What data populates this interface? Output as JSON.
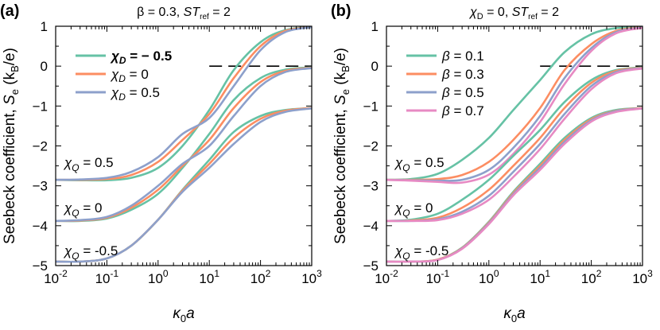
{
  "figure": {
    "panels": [
      "a",
      "b"
    ]
  },
  "chart_data": [
    {
      "type": "line",
      "panel_label": "(a)",
      "title": "β = 0.3, ST_ref = 2",
      "title_parts": {
        "main": "β = 0.3, ",
        "st": "ST",
        "sub": "ref",
        "tail": " = 2"
      },
      "xlabel": "κ0a",
      "xlabel_parts": {
        "sym": "κ",
        "sub": "0",
        "tail": "a"
      },
      "ylabel": "Seebeck coefficient, Se (kB/e)",
      "ylabel_parts": {
        "pre": "Seebeck coefficient, ",
        "S": "S",
        "e": "e",
        "open": " (k",
        "B": "B",
        "close": "/e)"
      },
      "x_scale": "log",
      "xlim": [
        0.01,
        1000
      ],
      "ylim": [
        -5,
        1
      ],
      "x_ticks": [
        {
          "base": "10",
          "exp": "-2",
          "value": 0.01
        },
        {
          "base": "10",
          "exp": "-1",
          "value": 0.1
        },
        {
          "base": "10",
          "exp": "0",
          "value": 1
        },
        {
          "base": "10",
          "exp": "1",
          "value": 10
        },
        {
          "base": "10",
          "exp": "2",
          "value": 100
        },
        {
          "base": "10",
          "exp": "3",
          "value": 1000
        }
      ],
      "y_ticks": [
        {
          "label": "1",
          "value": 1
        },
        {
          "label": "0",
          "value": 0
        },
        {
          "label": "−1",
          "value": -1
        },
        {
          "label": "−2",
          "value": -2
        },
        {
          "label": "−3",
          "value": -3
        },
        {
          "label": "−4",
          "value": -4
        },
        {
          "label": "−5",
          "value": -5
        }
      ],
      "reference_line": {
        "y": 0,
        "x_from": 10,
        "x_to": 1000,
        "style": "dashed"
      },
      "legend": {
        "placement": "upper-left",
        "entries": [
          {
            "sym": "χ",
            "sub": "D",
            "tail": " = − 0.5",
            "bold": true,
            "color": "#66c2a5"
          },
          {
            "sym": "χ",
            "sub": "D",
            "tail": " = 0",
            "bold": false,
            "color": "#fc8d62"
          },
          {
            "sym": "χ",
            "sub": "D",
            "tail": " = 0.5",
            "bold": false,
            "color": "#8da0cb"
          }
        ]
      },
      "group_labels": [
        {
          "sym": "χ",
          "sub": "Q",
          "tail": " = 0.5",
          "value": 0.5
        },
        {
          "sym": "χ",
          "sub": "Q",
          "tail": " = 0",
          "value": 0
        },
        {
          "sym": "χ",
          "sub": "Q",
          "tail": " = -0.5",
          "value": -0.5
        }
      ],
      "x": [
        0.01,
        0.03,
        0.1,
        0.3,
        1,
        3,
        10,
        30,
        100,
        300,
        1000
      ],
      "series": [
        {
          "name": "χD = −0.5, χQ = 0.5",
          "color": "#66c2a5",
          "values": [
            -2.85,
            -2.86,
            -2.86,
            -2.8,
            -2.55,
            -2.0,
            -1.1,
            -0.1,
            0.6,
            0.9,
            0.98
          ]
        },
        {
          "name": "χD = 0, χQ = 0.5",
          "color": "#fc8d62",
          "values": [
            -2.85,
            -2.85,
            -2.83,
            -2.73,
            -2.4,
            -1.85,
            -1.2,
            -0.3,
            0.5,
            0.88,
            0.98
          ]
        },
        {
          "name": "χD = 0.5, χQ = 0.5",
          "color": "#8da0cb",
          "values": [
            -2.85,
            -2.84,
            -2.8,
            -2.65,
            -2.28,
            -1.7,
            -1.3,
            -0.5,
            0.4,
            0.85,
            0.98
          ]
        },
        {
          "name": "χD = −0.5, χQ = 0",
          "color": "#66c2a5",
          "values": [
            -3.88,
            -3.88,
            -3.82,
            -3.6,
            -3.2,
            -2.55,
            -1.7,
            -0.85,
            -0.3,
            -0.09,
            -0.03
          ]
        },
        {
          "name": "χD = 0, χQ = 0",
          "color": "#fc8d62",
          "values": [
            -3.88,
            -3.87,
            -3.8,
            -3.55,
            -3.1,
            -2.5,
            -1.85,
            -1.05,
            -0.4,
            -0.12,
            -0.04
          ]
        },
        {
          "name": "χD = 0.5, χQ = 0",
          "color": "#8da0cb",
          "values": [
            -3.88,
            -3.86,
            -3.78,
            -3.5,
            -3.0,
            -2.45,
            -2.0,
            -1.25,
            -0.5,
            -0.15,
            -0.05
          ]
        },
        {
          "name": "χD = −0.5, χQ = −0.5",
          "color": "#66c2a5",
          "values": [
            -4.9,
            -4.9,
            -4.82,
            -4.5,
            -3.85,
            -3.1,
            -2.35,
            -1.65,
            -1.25,
            -1.1,
            -1.05
          ]
        },
        {
          "name": "χD = 0, χQ = −0.5",
          "color": "#fc8d62",
          "values": [
            -4.9,
            -4.9,
            -4.82,
            -4.5,
            -3.85,
            -3.12,
            -2.45,
            -1.8,
            -1.32,
            -1.12,
            -1.05
          ]
        },
        {
          "name": "χD = 0.5, χQ = −0.5",
          "color": "#8da0cb",
          "values": [
            -4.9,
            -4.9,
            -4.82,
            -4.5,
            -3.85,
            -3.15,
            -2.55,
            -1.95,
            -1.4,
            -1.15,
            -1.06
          ]
        }
      ]
    },
    {
      "type": "line",
      "panel_label": "(b)",
      "title": "χD = 0, ST_ref = 2",
      "title_parts": {
        "sym": "χ",
        "sub": "D",
        "main": " = 0, ",
        "st": "ST",
        "sub2": "ref",
        "tail": " = 2"
      },
      "xlabel": "κ0a",
      "xlabel_parts": {
        "sym": "κ",
        "sub": "0",
        "tail": "a"
      },
      "ylabel": "Seebeck coefficient, Se (kB/e)",
      "ylabel_parts": {
        "pre": "Seebeck coefficient, ",
        "S": "S",
        "e": "e",
        "open": " (k",
        "B": "B",
        "close": "/e)"
      },
      "x_scale": "log",
      "xlim": [
        0.01,
        1000
      ],
      "ylim": [
        -5,
        1
      ],
      "x_ticks": [
        {
          "base": "10",
          "exp": "-2",
          "value": 0.01
        },
        {
          "base": "10",
          "exp": "-1",
          "value": 0.1
        },
        {
          "base": "10",
          "exp": "0",
          "value": 1
        },
        {
          "base": "10",
          "exp": "1",
          "value": 10
        },
        {
          "base": "10",
          "exp": "2",
          "value": 100
        },
        {
          "base": "10",
          "exp": "3",
          "value": 1000
        }
      ],
      "y_ticks": [
        {
          "label": "1",
          "value": 1
        },
        {
          "label": "0",
          "value": 0
        },
        {
          "label": "−1",
          "value": -1
        },
        {
          "label": "−2",
          "value": -2
        },
        {
          "label": "−3",
          "value": -3
        },
        {
          "label": "−4",
          "value": -4
        },
        {
          "label": "−5",
          "value": -5
        }
      ],
      "reference_line": {
        "y": 0,
        "x_from": 10,
        "x_to": 1000,
        "style": "dashed"
      },
      "legend": {
        "placement": "upper-left",
        "entries": [
          {
            "sym": "β",
            "sub": "",
            "tail": " = 0.1",
            "bold": false,
            "color": "#66c2a5"
          },
          {
            "sym": "β",
            "sub": "",
            "tail": " = 0.3",
            "bold": false,
            "color": "#fc8d62"
          },
          {
            "sym": "β",
            "sub": "",
            "tail": " = 0.5",
            "bold": false,
            "color": "#8da0cb"
          },
          {
            "sym": "β",
            "sub": "",
            "tail": " = 0.7",
            "bold": false,
            "color": "#e78ac3"
          }
        ]
      },
      "group_labels": [
        {
          "sym": "χ",
          "sub": "Q",
          "tail": " = 0.5",
          "value": 0.5
        },
        {
          "sym": "χ",
          "sub": "Q",
          "tail": " = 0",
          "value": 0
        },
        {
          "sym": "χ",
          "sub": "Q",
          "tail": " = -0.5",
          "value": -0.5
        }
      ],
      "x": [
        0.01,
        0.03,
        0.1,
        0.3,
        1,
        3,
        10,
        30,
        100,
        300,
        1000
      ],
      "series": [
        {
          "name": "β = 0.1, χQ = 0.5",
          "color": "#66c2a5",
          "values": [
            -2.85,
            -2.83,
            -2.7,
            -2.35,
            -1.8,
            -1.1,
            -0.35,
            0.35,
            0.8,
            0.95,
            0.98
          ]
        },
        {
          "name": "β = 0.3, χQ = 0.5",
          "color": "#fc8d62",
          "values": [
            -2.85,
            -2.85,
            -2.83,
            -2.73,
            -2.4,
            -1.85,
            -1.05,
            -0.1,
            0.55,
            0.88,
            0.98
          ]
        },
        {
          "name": "β = 0.5, χQ = 0.5",
          "color": "#8da0cb",
          "values": [
            -2.85,
            -2.86,
            -2.87,
            -2.85,
            -2.6,
            -2.05,
            -1.25,
            -0.3,
            0.45,
            0.85,
            0.97
          ]
        },
        {
          "name": "β = 0.7, χQ = 0.5",
          "color": "#e78ac3",
          "values": [
            -2.85,
            -2.87,
            -2.9,
            -2.92,
            -2.72,
            -2.2,
            -1.4,
            -0.45,
            0.38,
            0.82,
            0.96
          ]
        },
        {
          "name": "β = 0.1, χQ = 0",
          "color": "#66c2a5",
          "values": [
            -3.88,
            -3.85,
            -3.7,
            -3.35,
            -2.85,
            -2.25,
            -1.6,
            -0.9,
            -0.35,
            -0.1,
            -0.03
          ]
        },
        {
          "name": "β = 0.3, χQ = 0",
          "color": "#fc8d62",
          "values": [
            -3.88,
            -3.87,
            -3.8,
            -3.55,
            -3.1,
            -2.5,
            -1.8,
            -1.05,
            -0.42,
            -0.12,
            -0.04
          ]
        },
        {
          "name": "β = 0.5, χQ = 0",
          "color": "#8da0cb",
          "values": [
            -3.88,
            -3.88,
            -3.84,
            -3.65,
            -3.25,
            -2.65,
            -1.95,
            -1.2,
            -0.5,
            -0.15,
            -0.05
          ]
        },
        {
          "name": "β = 0.7, χQ = 0",
          "color": "#e78ac3",
          "values": [
            -3.88,
            -3.88,
            -3.86,
            -3.7,
            -3.35,
            -2.78,
            -2.08,
            -1.32,
            -0.58,
            -0.18,
            -0.06
          ]
        },
        {
          "name": "β = 0.1, χQ = −0.5",
          "color": "#66c2a5",
          "values": [
            -4.9,
            -4.9,
            -4.85,
            -4.55,
            -3.9,
            -3.15,
            -2.45,
            -1.8,
            -1.3,
            -1.1,
            -1.05
          ]
        },
        {
          "name": "β = 0.3, χQ = −0.5",
          "color": "#fc8d62",
          "values": [
            -4.9,
            -4.9,
            -4.85,
            -4.56,
            -3.92,
            -3.18,
            -2.5,
            -1.85,
            -1.33,
            -1.12,
            -1.05
          ]
        },
        {
          "name": "β = 0.5, χQ = −0.5",
          "color": "#8da0cb",
          "values": [
            -4.9,
            -4.9,
            -4.86,
            -4.57,
            -3.94,
            -3.21,
            -2.55,
            -1.9,
            -1.36,
            -1.13,
            -1.06
          ]
        },
        {
          "name": "β = 0.7, χQ = −0.5",
          "color": "#e78ac3",
          "values": [
            -4.9,
            -4.9,
            -4.86,
            -4.58,
            -3.96,
            -3.24,
            -2.6,
            -1.95,
            -1.39,
            -1.15,
            -1.06
          ]
        }
      ]
    }
  ]
}
